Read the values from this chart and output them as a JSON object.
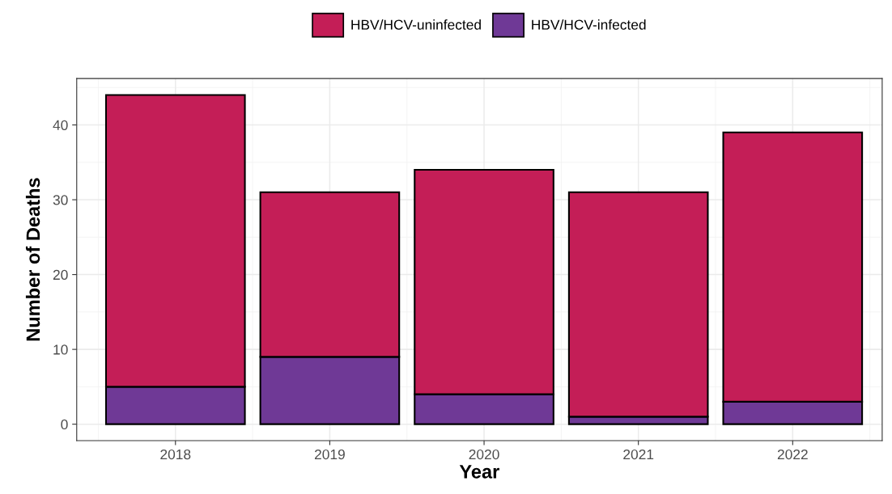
{
  "chart_data": {
    "type": "bar",
    "stacked": true,
    "xlabel": "Year",
    "ylabel": "Number of Deaths",
    "categories": [
      "2018",
      "2019",
      "2020",
      "2021",
      "2022"
    ],
    "series": [
      {
        "name": "HBV/HCV-infected",
        "color": "#6f3996",
        "values": [
          5,
          9,
          4,
          1,
          3
        ]
      },
      {
        "name": "HBV/HCV-uninfected",
        "color": "#c41e57",
        "values": [
          39,
          22,
          30,
          30,
          36
        ]
      }
    ],
    "ylim": [
      -2.2,
      46.2
    ],
    "yticks": [
      0,
      10,
      20,
      30,
      40
    ],
    "grid": true,
    "legend": "top"
  }
}
